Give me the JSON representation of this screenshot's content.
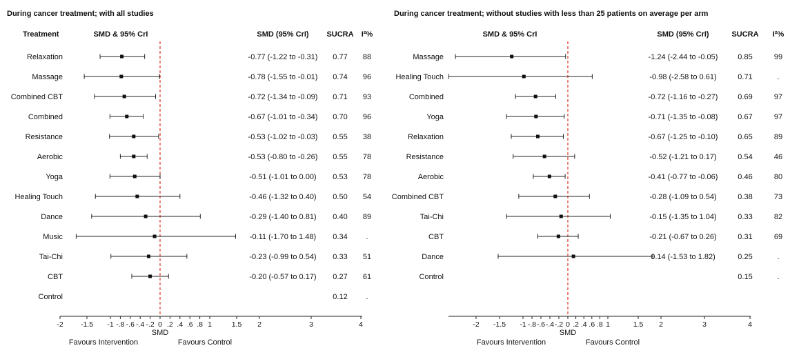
{
  "chart_data": [
    {
      "type": "forest",
      "title": "During cancer treatment; with all studies",
      "col_treatment": "Treatment",
      "col_smd_ci": "SMD & 95% CrI",
      "col_smd_text": "SMD (95% CrI)",
      "col_sucra": "SUCRA",
      "col_i2": "I²%",
      "xlabel": "SMD",
      "favours_left": "Favours Intervention",
      "favours_right": "Favours Control",
      "ticks": [
        "-2",
        "-1.5",
        "-1",
        "-.8",
        "-.6",
        "-.4",
        "-.2",
        "0",
        ".2",
        ".4",
        ".6",
        ".8",
        "1",
        "1.5",
        "2",
        "3",
        "4"
      ],
      "rows": [
        {
          "label": "Relaxation",
          "smd": -0.77,
          "lo": -1.22,
          "hi": -0.31,
          "ci_text": "-0.77 (-1.22 to -0.31)",
          "sucra": "0.77",
          "i2": "88"
        },
        {
          "label": "Massage",
          "smd": -0.78,
          "lo": -1.55,
          "hi": -0.01,
          "ci_text": "-0.78 (-1.55 to -0.01)",
          "sucra": "0.74",
          "i2": "96"
        },
        {
          "label": "Combined CBT",
          "smd": -0.72,
          "lo": -1.34,
          "hi": -0.09,
          "ci_text": "-0.72 (-1.34 to -0.09)",
          "sucra": "0.71",
          "i2": "93"
        },
        {
          "label": "Combined",
          "smd": -0.67,
          "lo": -1.01,
          "hi": -0.34,
          "ci_text": "-0.67 (-1.01 to -0.34)",
          "sucra": "0.70",
          "i2": "96"
        },
        {
          "label": "Resistance",
          "smd": -0.53,
          "lo": -1.02,
          "hi": -0.03,
          "ci_text": "-0.53 (-1.02 to -0.03)",
          "sucra": "0.55",
          "i2": "38"
        },
        {
          "label": "Aerobic",
          "smd": -0.53,
          "lo": -0.8,
          "hi": -0.26,
          "ci_text": "-0.53 (-0.80 to -0.26)",
          "sucra": "0.55",
          "i2": "78"
        },
        {
          "label": "Yoga",
          "smd": -0.51,
          "lo": -1.01,
          "hi": 0.0,
          "ci_text": "-0.51 (-1.01 to 0.00)",
          "sucra": "0.53",
          "i2": "78"
        },
        {
          "label": "Healing Touch",
          "smd": -0.46,
          "lo": -1.32,
          "hi": 0.4,
          "ci_text": "-0.46 (-1.32 to 0.40)",
          "sucra": "0.50",
          "i2": "54"
        },
        {
          "label": "Dance",
          "smd": -0.29,
          "lo": -1.4,
          "hi": 0.81,
          "ci_text": "-0.29 (-1.40 to 0.81)",
          "sucra": "0.40",
          "i2": "89"
        },
        {
          "label": "Music",
          "smd": -0.11,
          "lo": -1.7,
          "hi": 1.48,
          "ci_text": "-0.11 (-1.70 to 1.48)",
          "sucra": "0.34",
          "i2": "."
        },
        {
          "label": "Tai-Chi",
          "smd": -0.23,
          "lo": -0.99,
          "hi": 0.54,
          "ci_text": "-0.23 (-0.99 to 0.54)",
          "sucra": "0.33",
          "i2": "51"
        },
        {
          "label": "CBT",
          "smd": -0.2,
          "lo": -0.57,
          "hi": 0.17,
          "ci_text": "-0.20 (-0.57 to 0.17)",
          "sucra": "0.27",
          "i2": "61"
        },
        {
          "label": "Control",
          "smd": null,
          "lo": null,
          "hi": null,
          "ci_text": "",
          "sucra": "0.12",
          "i2": "."
        }
      ]
    },
    {
      "type": "forest",
      "title": "During cancer treatment; without studies with less than 25 patients on average per arm",
      "col_treatment": "",
      "col_smd_ci": "SMD & 95% CrI",
      "col_smd_text": "SMD (95% CrI)",
      "col_sucra": "SUCRA",
      "col_i2": "I²%",
      "xlabel": "SMD",
      "favours_left": "Favours Intervention",
      "favours_right": "Favours Control",
      "ticks": [
        "-2",
        "-1.5",
        "-1",
        "-.8",
        "-.6",
        "-.4",
        "-.2",
        "0",
        ".2",
        ".4",
        ".6",
        ".8",
        "1",
        "1.5",
        "2",
        "3",
        "4"
      ],
      "rows": [
        {
          "label": "Massage",
          "smd": -1.24,
          "lo": -2.44,
          "hi": -0.05,
          "ci_text": "-1.24 (-2.44 to -0.05)",
          "sucra": "0.85",
          "i2": "99"
        },
        {
          "label": "Healing Touch",
          "smd": -0.98,
          "lo": -2.58,
          "hi": 0.61,
          "ci_text": "-0.98 (-2.58 to 0.61)",
          "sucra": "0.71",
          "i2": "."
        },
        {
          "label": "Combined",
          "smd": -0.72,
          "lo": -1.16,
          "hi": -0.27,
          "ci_text": "-0.72 (-1.16 to -0.27)",
          "sucra": "0.69",
          "i2": "97"
        },
        {
          "label": "Yoga",
          "smd": -0.71,
          "lo": -1.35,
          "hi": -0.08,
          "ci_text": "-0.71 (-1.35 to -0.08)",
          "sucra": "0.67",
          "i2": "97"
        },
        {
          "label": "Relaxation",
          "smd": -0.67,
          "lo": -1.25,
          "hi": -0.1,
          "ci_text": "-0.67 (-1.25 to -0.10)",
          "sucra": "0.65",
          "i2": "89"
        },
        {
          "label": "Resistance",
          "smd": -0.52,
          "lo": -1.21,
          "hi": 0.17,
          "ci_text": "-0.52 (-1.21 to 0.17)",
          "sucra": "0.54",
          "i2": "46"
        },
        {
          "label": "Aerobic",
          "smd": -0.41,
          "lo": -0.77,
          "hi": -0.06,
          "ci_text": "-0.41 (-0.77 to -0.06)",
          "sucra": "0.46",
          "i2": "80"
        },
        {
          "label": "Combined CBT",
          "smd": -0.28,
          "lo": -1.09,
          "hi": 0.54,
          "ci_text": "-0.28 (-1.09 to 0.54)",
          "sucra": "0.38",
          "i2": "73"
        },
        {
          "label": "Tai-Chi",
          "smd": -0.15,
          "lo": -1.35,
          "hi": 1.04,
          "ci_text": "-0.15 (-1.35 to 1.04)",
          "sucra": "0.33",
          "i2": "82"
        },
        {
          "label": "CBT",
          "smd": -0.21,
          "lo": -0.67,
          "hi": 0.26,
          "ci_text": "-0.21 (-0.67 to 0.26)",
          "sucra": "0.31",
          "i2": "69"
        },
        {
          "label": "Dance",
          "smd": 0.14,
          "lo": -1.53,
          "hi": 1.82,
          "ci_text": "0.14 (-1.53 to 1.82)",
          "sucra": "0.25",
          "i2": "."
        },
        {
          "label": "Control",
          "smd": null,
          "lo": null,
          "hi": null,
          "ci_text": "",
          "sucra": "0.15",
          "i2": "."
        }
      ]
    }
  ]
}
